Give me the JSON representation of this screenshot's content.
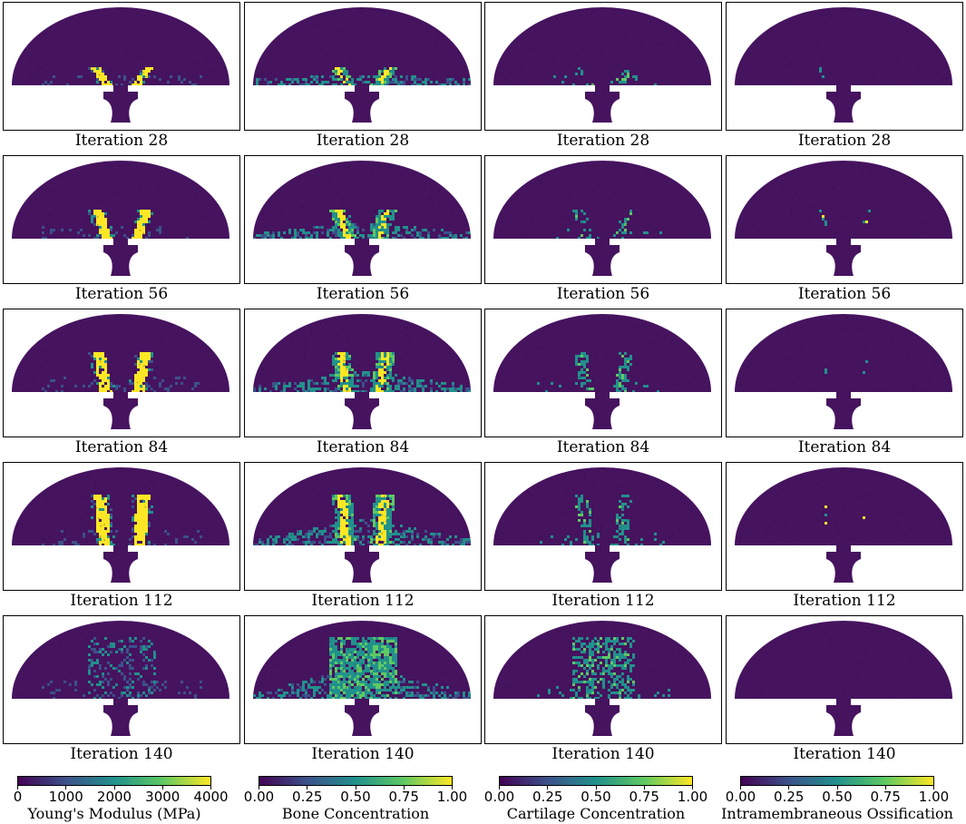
{
  "colors": {
    "background_domain": "#46135f",
    "high": "#fde725",
    "mid": "#21918c",
    "panel_border": "#000000",
    "viridis": [
      "#440154",
      "#3b528b",
      "#21918c",
      "#5ec962",
      "#fde725"
    ]
  },
  "columns": [
    {
      "field": "youngs_modulus",
      "pattern": "modulus",
      "panels": [
        {
          "caption": "Iteration 28",
          "progress": 0.2
        },
        {
          "caption": "Iteration 56",
          "progress": 0.4
        },
        {
          "caption": "Iteration 84",
          "progress": 0.6
        },
        {
          "caption": "Iteration 112",
          "progress": 0.8
        },
        {
          "caption": "Iteration 140",
          "progress": 1.0
        }
      ],
      "colorbar": {
        "label": "Young's Modulus (MPa)",
        "ticks": [
          "0",
          "1000",
          "2000",
          "3000",
          "4000"
        ]
      }
    },
    {
      "field": "bone_concentration",
      "pattern": "bone",
      "panels": [
        {
          "caption": "Iteration 28",
          "progress": 0.2
        },
        {
          "caption": "Iteration 56",
          "progress": 0.4
        },
        {
          "caption": "Iteration 84",
          "progress": 0.6
        },
        {
          "caption": "Iteration 112",
          "progress": 0.8
        },
        {
          "caption": "Iteration 140",
          "progress": 1.0
        }
      ],
      "colorbar": {
        "label": "Bone Concentration",
        "ticks": [
          "0.00",
          "0.25",
          "0.50",
          "0.75",
          "1.00"
        ]
      }
    },
    {
      "field": "cartilage_concentration",
      "pattern": "cartilage",
      "panels": [
        {
          "caption": "Iteration 28",
          "progress": 0.2
        },
        {
          "caption": "Iteration 56",
          "progress": 0.4
        },
        {
          "caption": "Iteration 84",
          "progress": 0.6
        },
        {
          "caption": "Iteration 112",
          "progress": 0.8
        },
        {
          "caption": "Iteration 140",
          "progress": 1.0
        }
      ],
      "colorbar": {
        "label": "Cartilage Concentration",
        "ticks": [
          "0.00",
          "0.25",
          "0.50",
          "0.75",
          "1.00"
        ]
      }
    },
    {
      "field": "intramembraneous_ossification",
      "pattern": "ossification",
      "panels": [
        {
          "caption": "Iteration 28",
          "progress": 0.2
        },
        {
          "caption": "Iteration 56",
          "progress": 0.4
        },
        {
          "caption": "Iteration 84",
          "progress": 0.6
        },
        {
          "caption": "Iteration 112",
          "progress": 0.8
        },
        {
          "caption": "Iteration 140",
          "progress": 1.0
        }
      ],
      "colorbar": {
        "label": "Intramembraneous Ossification",
        "ticks": [
          "0.00",
          "0.25",
          "0.50",
          "0.75",
          "1.00"
        ]
      }
    }
  ]
}
